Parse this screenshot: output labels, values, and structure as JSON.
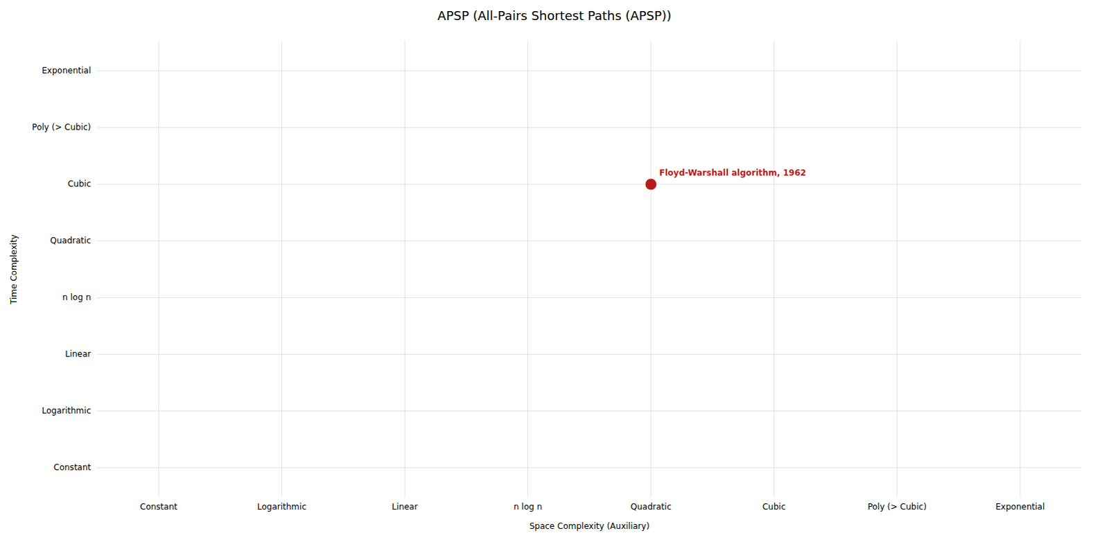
{
  "chart_data": {
    "type": "scatter",
    "title": "APSP (All-Pairs Shortest Paths (APSP))",
    "xlabel": "Space Complexity (Auxiliary)",
    "ylabel": "Time Complexity",
    "categories": [
      "Constant",
      "Logarithmic",
      "Linear",
      "n log n",
      "Quadratic",
      "Cubic",
      "Poly (> Cubic)",
      "Exponential"
    ],
    "y_categories": [
      "Constant",
      "Logarithmic",
      "Linear",
      "n log n",
      "Quadratic",
      "Cubic",
      "Poly (> Cubic)",
      "Exponential"
    ],
    "series": [
      {
        "name": "Floyd-Warshall algorithm, 1962",
        "color": "#b71c1c",
        "x": [
          "Quadratic"
        ],
        "y": [
          "Cubic"
        ]
      }
    ],
    "grid": true
  }
}
